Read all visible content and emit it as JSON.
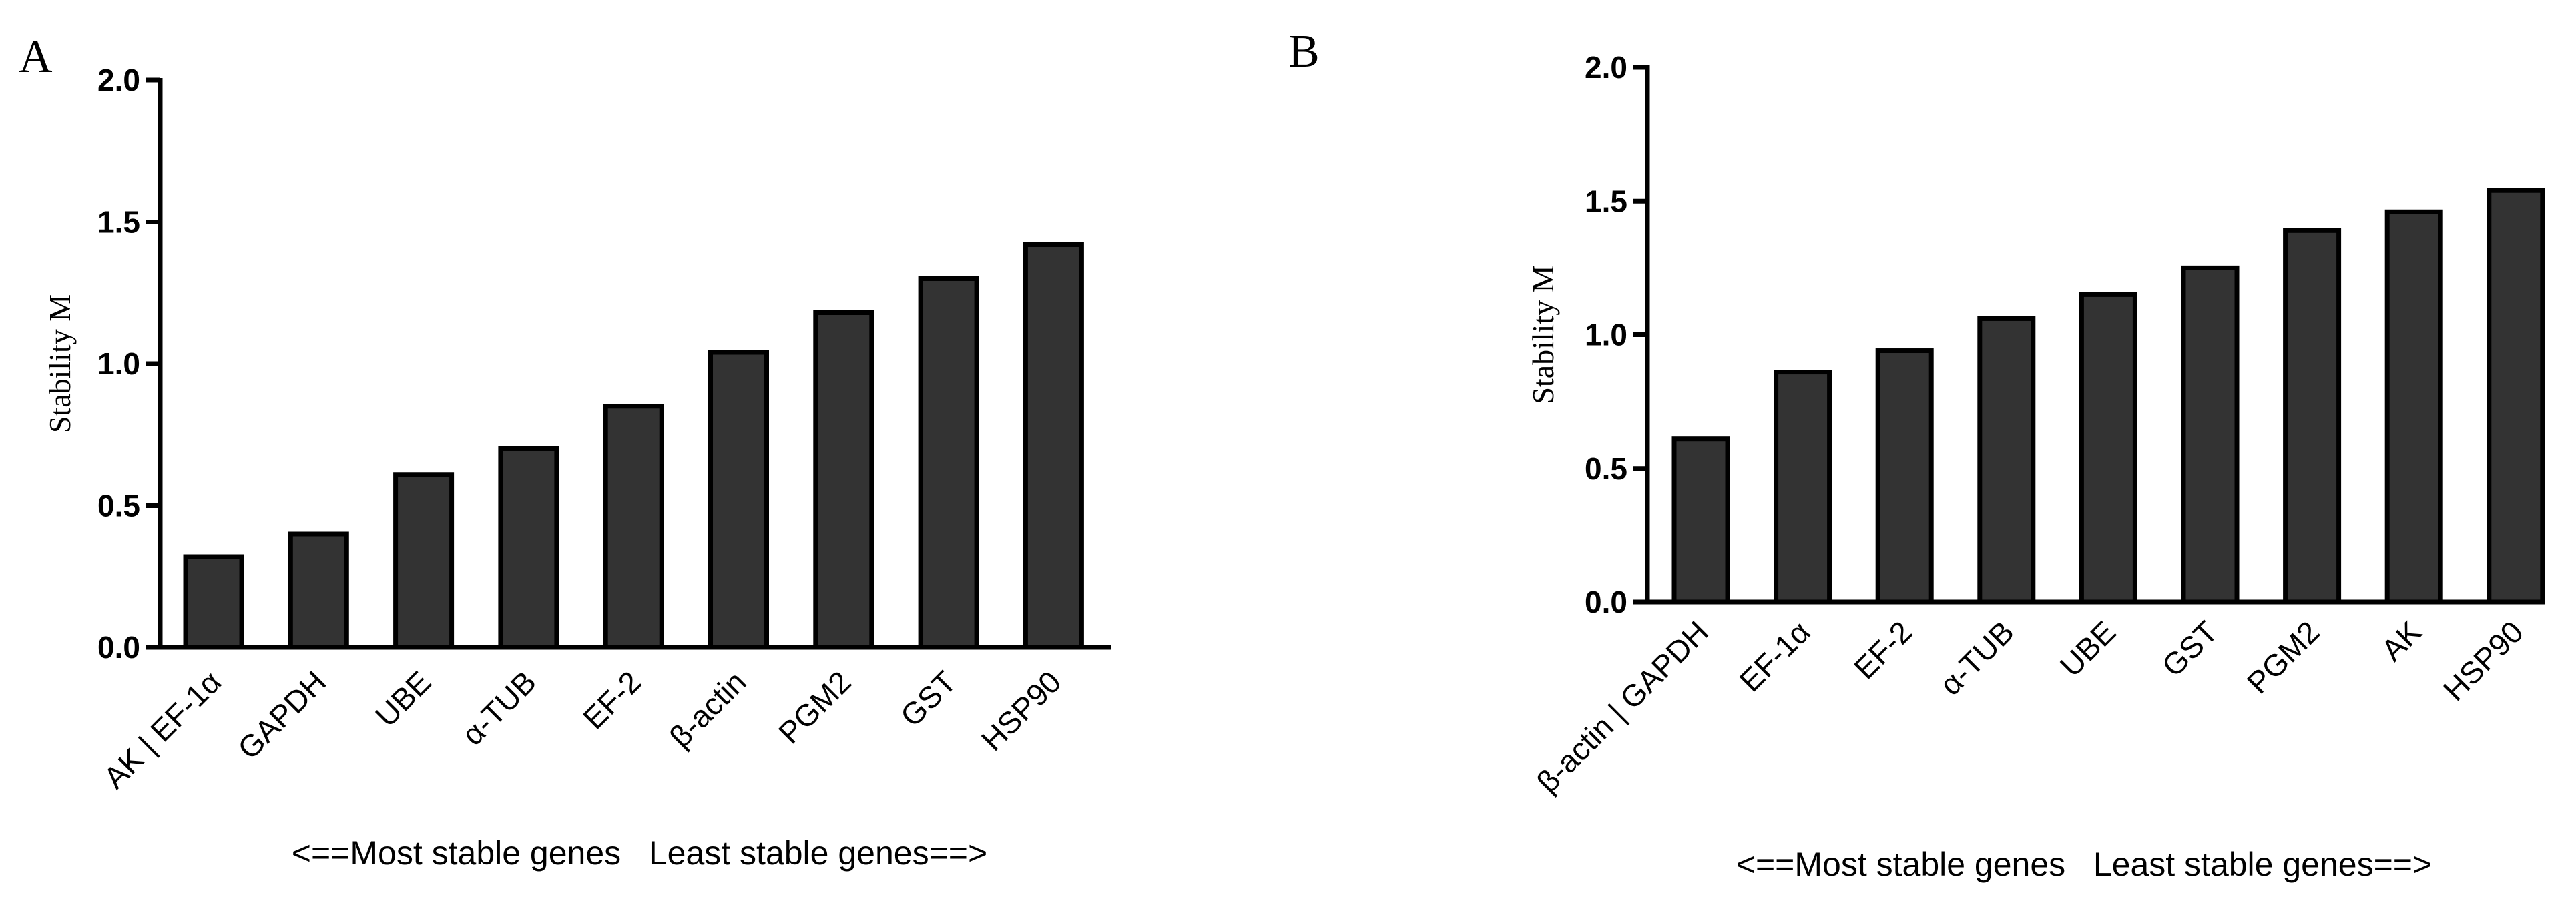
{
  "chart_data": [
    {
      "type": "bar",
      "panel_label": "A",
      "categories": [
        "AK | EF-1α",
        "GAPDH",
        "UBE",
        "α-TUB",
        "EF-2",
        "β-actin",
        "PGM2",
        "GST",
        "HSP90"
      ],
      "values": [
        0.32,
        0.4,
        0.61,
        0.7,
        0.85,
        1.04,
        1.18,
        1.3,
        1.42
      ],
      "ylabel": "Stability M",
      "xlabel": "<==Most stable genes   Least stable genes==>",
      "ylim": [
        0,
        2.0
      ],
      "yticks": [
        "0.0",
        "0.5",
        "1.0",
        "1.5",
        "2.0"
      ],
      "bar_color": "#333333"
    },
    {
      "type": "bar",
      "panel_label": "B",
      "categories": [
        "β-actin | GAPDH",
        "EF-1α",
        "EF-2",
        "α-TUB",
        "UBE",
        "GST",
        "PGM2",
        "AK",
        "HSP90"
      ],
      "values": [
        0.61,
        0.86,
        0.94,
        1.06,
        1.15,
        1.25,
        1.39,
        1.46,
        1.54
      ],
      "ylabel": "Stability M",
      "xlabel": "<==Most stable genes   Least stable genes==>",
      "ylim": [
        0,
        2.0
      ],
      "yticks": [
        "0.0",
        "0.5",
        "1.0",
        "1.5",
        "2.0"
      ],
      "bar_color": "#333333"
    }
  ]
}
